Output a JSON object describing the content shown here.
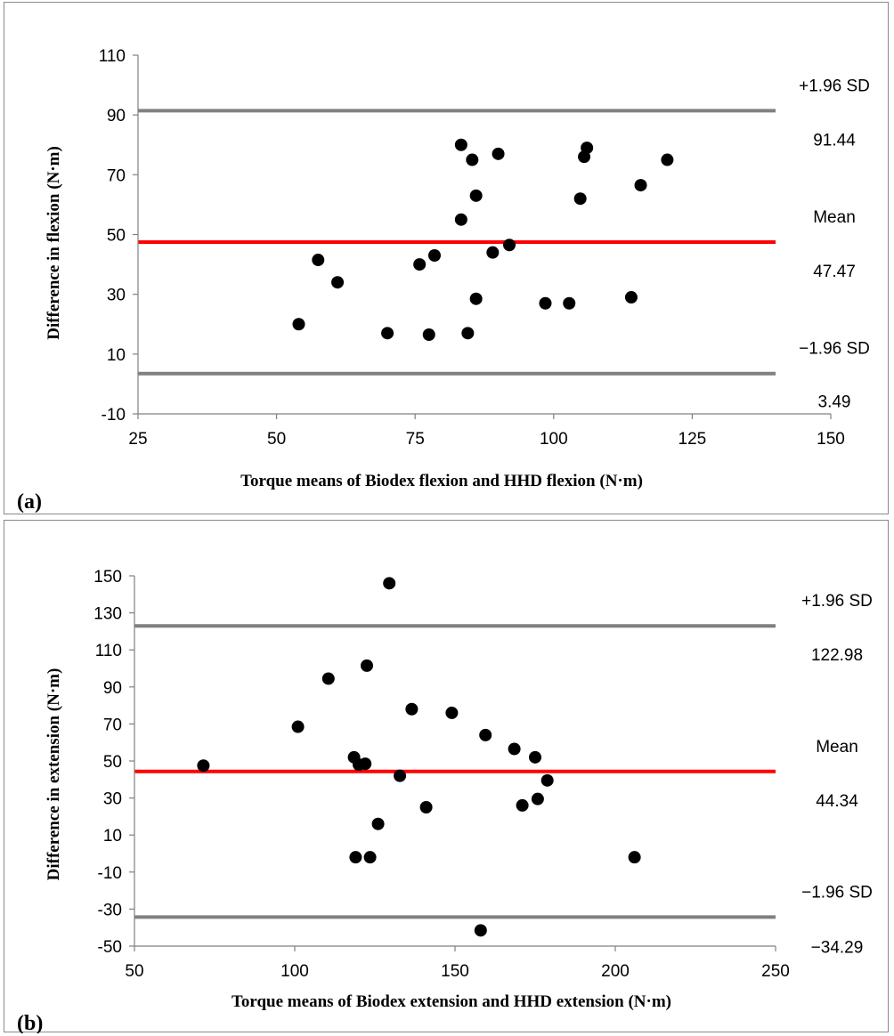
{
  "chart_data": [
    {
      "type": "scatter",
      "panel_label": "(a)",
      "xlabel": "Torque means of Biodex flexion and HHD flexion (N·m)",
      "ylabel": "Difference in flexion (N·m)",
      "xlim": [
        25,
        150
      ],
      "ylim": [
        -10,
        110
      ],
      "xticks": [
        "25",
        "50",
        "75",
        "100",
        "125",
        "150"
      ],
      "yticks": [
        "-10",
        "10",
        "30",
        "50",
        "70",
        "90",
        "110"
      ],
      "grid": false,
      "points": [
        {
          "x": 54,
          "y": 20
        },
        {
          "x": 57.5,
          "y": 41.5
        },
        {
          "x": 61,
          "y": 34
        },
        {
          "x": 70,
          "y": 17
        },
        {
          "x": 75.8,
          "y": 40
        },
        {
          "x": 77.5,
          "y": 16.5
        },
        {
          "x": 78.5,
          "y": 43
        },
        {
          "x": 83.3,
          "y": 80
        },
        {
          "x": 83.3,
          "y": 55
        },
        {
          "x": 84.5,
          "y": 17
        },
        {
          "x": 85.3,
          "y": 75
        },
        {
          "x": 86,
          "y": 63
        },
        {
          "x": 86,
          "y": 28.5
        },
        {
          "x": 89,
          "y": 44
        },
        {
          "x": 90,
          "y": 77
        },
        {
          "x": 92,
          "y": 46.5
        },
        {
          "x": 98.5,
          "y": 27
        },
        {
          "x": 102.8,
          "y": 27
        },
        {
          "x": 104.8,
          "y": 62
        },
        {
          "x": 105.5,
          "y": 76
        },
        {
          "x": 106,
          "y": 79
        },
        {
          "x": 114,
          "y": 29
        },
        {
          "x": 115.7,
          "y": 66.5
        },
        {
          "x": 120.5,
          "y": 75
        }
      ],
      "lines": [
        {
          "name": "+1.96 SD",
          "value": 91.44,
          "value_label": "91.44",
          "color": "#808080"
        },
        {
          "name": "Mean",
          "value": 47.47,
          "value_label": "47.47",
          "color": "#ff0000"
        },
        {
          "name": "−1.96 SD",
          "value": 3.49,
          "value_label": "3.49",
          "color": "#808080"
        }
      ]
    },
    {
      "type": "scatter",
      "panel_label": "(b)",
      "xlabel": "Torque means of Biodex extension and HHD extension (N·m)",
      "ylabel": "Difference in extension (N·m)",
      "xlim": [
        50,
        250
      ],
      "ylim": [
        -50,
        150
      ],
      "xticks": [
        "50",
        "100",
        "150",
        "200",
        "250"
      ],
      "yticks": [
        "-50",
        "-30",
        "-10",
        "10",
        "30",
        "50",
        "70",
        "90",
        "110",
        "130",
        "150"
      ],
      "grid": false,
      "points": [
        {
          "x": 71.5,
          "y": 47.5
        },
        {
          "x": 101,
          "y": 68.5
        },
        {
          "x": 110.5,
          "y": 94.5
        },
        {
          "x": 118.5,
          "y": 52
        },
        {
          "x": 119,
          "y": -2
        },
        {
          "x": 120,
          "y": 48
        },
        {
          "x": 122,
          "y": 48.5
        },
        {
          "x": 122.5,
          "y": 101.5
        },
        {
          "x": 123.5,
          "y": -2
        },
        {
          "x": 126,
          "y": 16
        },
        {
          "x": 129.5,
          "y": 146
        },
        {
          "x": 132.8,
          "y": 42
        },
        {
          "x": 136.5,
          "y": 78
        },
        {
          "x": 141,
          "y": 25
        },
        {
          "x": 149,
          "y": 76
        },
        {
          "x": 158,
          "y": -41.5
        },
        {
          "x": 159.5,
          "y": 64
        },
        {
          "x": 168.5,
          "y": 56.5
        },
        {
          "x": 171,
          "y": 26
        },
        {
          "x": 175,
          "y": 52
        },
        {
          "x": 175.8,
          "y": 29.5
        },
        {
          "x": 178.8,
          "y": 39.5
        },
        {
          "x": 206,
          "y": -2
        }
      ],
      "lines": [
        {
          "name": "+1.96 SD",
          "value": 122.98,
          "value_label": "122.98",
          "color": "#808080"
        },
        {
          "name": "Mean",
          "value": 44.34,
          "value_label": "44.34",
          "color": "#ff0000"
        },
        {
          "name": "−1.96 SD",
          "value": -34.29,
          "value_label": "−34.29",
          "color": "#808080"
        }
      ]
    }
  ]
}
